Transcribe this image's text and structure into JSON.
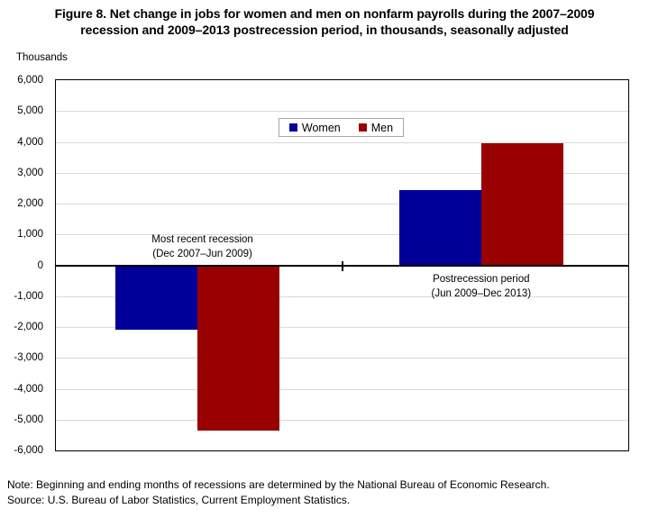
{
  "title": {
    "line1": "Figure 8. Net change in jobs for women and men on nonfarm payrolls during the 2007–2009",
    "line2": "recession and 2009–2013 postrecession period, in thousands, seasonally adjusted"
  },
  "footnotes": {
    "note": "Note: Beginning and ending months of recessions are determined by the National Bureau of Economic Research.",
    "source": "Source: U.S. Bureau of Labor Statistics, Current Employment Statistics."
  },
  "chart_data": {
    "type": "bar",
    "title": "Figure 8. Net change in jobs for women and men on nonfarm payrolls during the 2007–2009 recession and 2009–2013 postrecession period, in thousands, seasonally adjusted",
    "ylabel": "Thousands",
    "categories": [
      [
        "Most recent recession",
        "(Dec 2007–Jun 2009)"
      ],
      [
        "Postrecession period",
        "(Jun 2009–Dec 2013)"
      ]
    ],
    "series": [
      {
        "name": "Women",
        "color": "#000099",
        "values": [
          -2100,
          2450
        ]
      },
      {
        "name": "Men",
        "color": "#990000",
        "values": [
          -5350,
          3950
        ]
      }
    ],
    "ylim": [
      -6000,
      6000
    ],
    "ytick_step": 1000,
    "ytick_labels": [
      "6,000",
      "5,000",
      "4,000",
      "3,000",
      "2,000",
      "1,000",
      "0",
      "-1,000",
      "-2,000",
      "-3,000",
      "-4,000",
      "-5,000",
      "-6,000"
    ],
    "grid": "horizontal",
    "legend_position": "top-center",
    "colors": {
      "gridline": "#D9D9D9",
      "axis": "#000000",
      "legend_border": "#A6A6A6",
      "text": "#000000",
      "background": "#FFFFFF"
    }
  }
}
